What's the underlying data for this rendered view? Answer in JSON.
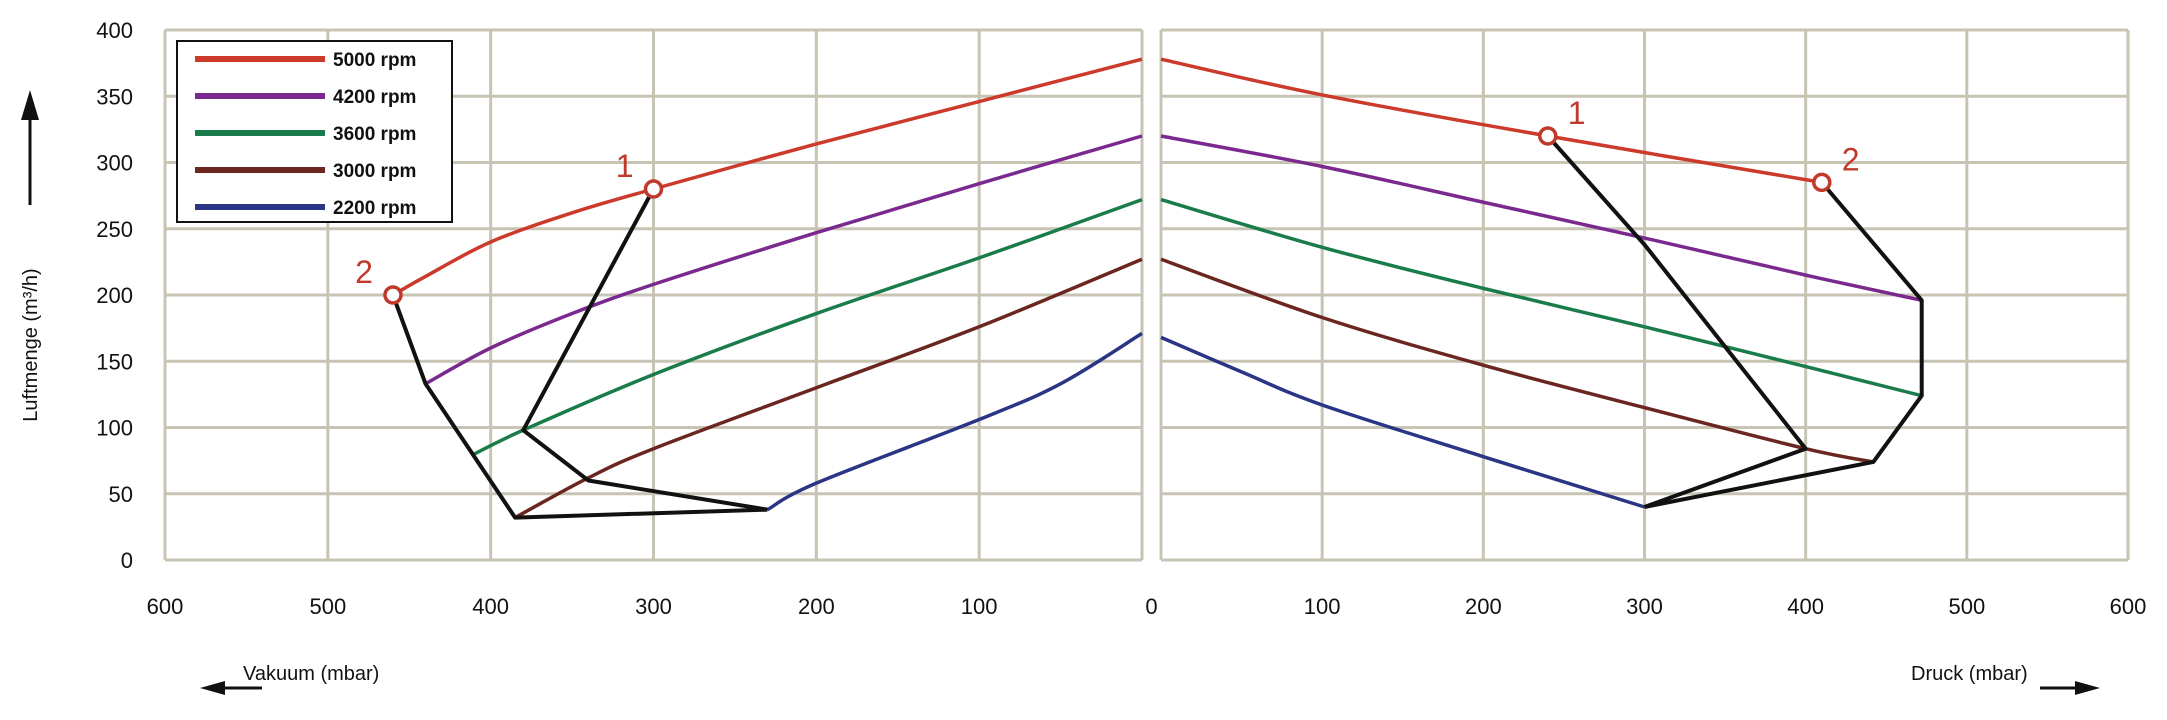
{
  "chart_data": {
    "type": "line",
    "ylabel": "Luftmenge (m³/h)",
    "left_xlabel": "Vakuum (mbar)",
    "right_xlabel": "Druck (mbar)",
    "xlim_left": [
      600,
      0
    ],
    "xlim_right": [
      0,
      600
    ],
    "ylim": [
      0,
      400
    ],
    "x_ticks_left": [
      "600",
      "500",
      "400",
      "300",
      "200",
      "100"
    ],
    "x_tick_zero": "0",
    "x_ticks_right": [
      "100",
      "200",
      "300",
      "400",
      "500",
      "600"
    ],
    "y_ticks": [
      "0",
      "50",
      "100",
      "150",
      "200",
      "250",
      "300",
      "350",
      "400"
    ],
    "grid": true,
    "legend_position": "top-left",
    "series": [
      {
        "name": "5000 rpm",
        "color": "#cc3a2b",
        "vacuum": [
          [
            460,
            200
          ],
          [
            440,
            214
          ],
          [
            400,
            240
          ],
          [
            350,
            262
          ],
          [
            300,
            280
          ],
          [
            200,
            314
          ],
          [
            100,
            346
          ],
          [
            0,
            378
          ]
        ],
        "pressure": [
          [
            0,
            378
          ],
          [
            100,
            351
          ],
          [
            240,
            320
          ],
          [
            410,
            285
          ]
        ]
      },
      {
        "name": "4200 rpm",
        "color": "#7a2a8e",
        "vacuum": [
          [
            440,
            133
          ],
          [
            400,
            160
          ],
          [
            350,
            186
          ],
          [
            300,
            208
          ],
          [
            200,
            247
          ],
          [
            100,
            284
          ],
          [
            0,
            320
          ]
        ],
        "pressure": [
          [
            0,
            320
          ],
          [
            100,
            297
          ],
          [
            200,
            270
          ],
          [
            300,
            243
          ],
          [
            400,
            215
          ],
          [
            472,
            196
          ]
        ]
      },
      {
        "name": "3600 rpm",
        "color": "#1a7c4a",
        "vacuum": [
          [
            410,
            80
          ],
          [
            380,
            98
          ],
          [
            300,
            140
          ],
          [
            200,
            186
          ],
          [
            100,
            228
          ],
          [
            0,
            272
          ]
        ],
        "pressure": [
          [
            0,
            272
          ],
          [
            100,
            236
          ],
          [
            200,
            205
          ],
          [
            300,
            176
          ],
          [
            400,
            146
          ],
          [
            472,
            124
          ]
        ]
      },
      {
        "name": "3000 rpm",
        "color": "#6b2620",
        "vacuum": [
          [
            385,
            32
          ],
          [
            340,
            62
          ],
          [
            300,
            84
          ],
          [
            200,
            130
          ],
          [
            100,
            176
          ],
          [
            0,
            227
          ]
        ],
        "pressure": [
          [
            0,
            227
          ],
          [
            100,
            183
          ],
          [
            200,
            147
          ],
          [
            300,
            115
          ],
          [
            400,
            84
          ],
          [
            442,
            74
          ]
        ]
      },
      {
        "name": "2200 rpm",
        "color": "#2b3585",
        "vacuum": [
          [
            230,
            38
          ],
          [
            200,
            58
          ],
          [
            100,
            106
          ],
          [
            50,
            133
          ],
          [
            0,
            171
          ]
        ],
        "pressure": [
          [
            0,
            168
          ],
          [
            50,
            142
          ],
          [
            100,
            117
          ],
          [
            200,
            78
          ],
          [
            300,
            40
          ]
        ]
      }
    ],
    "operating_lines": {
      "vacuum": [
        [
          [
            460,
            200
          ],
          [
            440,
            133
          ],
          [
            385,
            32
          ],
          [
            230,
            38
          ]
        ],
        [
          [
            300,
            280
          ],
          [
            380,
            98
          ],
          [
            340,
            60
          ],
          [
            230,
            38
          ]
        ]
      ],
      "pressure": [
        [
          [
            240,
            320
          ],
          [
            300,
            238
          ],
          [
            400,
            84
          ],
          [
            300,
            40
          ]
        ],
        [
          [
            410,
            285
          ],
          [
            472,
            196
          ],
          [
            472,
            124
          ],
          [
            442,
            74
          ],
          [
            300,
            40
          ]
        ]
      ]
    },
    "marked_points": [
      {
        "label": "1",
        "side": "vacuum",
        "x": 300,
        "y": 280
      },
      {
        "label": "2",
        "side": "vacuum",
        "x": 460,
        "y": 200
      },
      {
        "label": "1",
        "side": "pressure",
        "x": 240,
        "y": 320
      },
      {
        "label": "2",
        "side": "pressure",
        "x": 410,
        "y": 285
      }
    ],
    "marker_color": "#c0392b",
    "line_color": "#111111",
    "grid_color": "#c8c4b4"
  }
}
